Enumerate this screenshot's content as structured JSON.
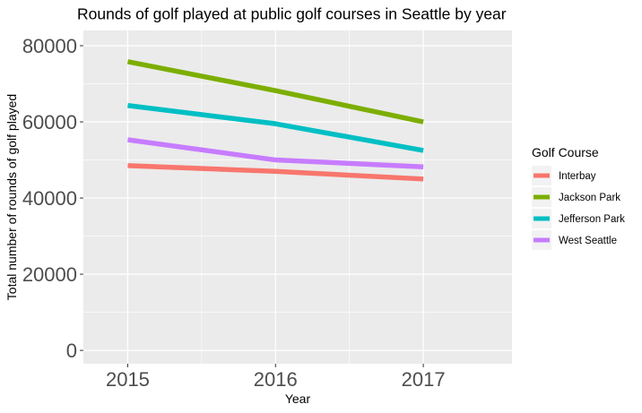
{
  "chart_data": {
    "type": "line",
    "title": "Rounds of golf played at public golf courses in Seattle by year",
    "xlabel": "Year",
    "ylabel": "Total number of rounds of golf played",
    "x": [
      2015,
      2016,
      2017
    ],
    "xlim": [
      2014.7,
      2017.6
    ],
    "ylim": [
      -3500,
      84000
    ],
    "yticks": [
      0,
      20000,
      40000,
      60000,
      80000
    ],
    "ytick_labels": [
      "0",
      "20000",
      "40000",
      "60000",
      "80000"
    ],
    "xtick_labels": [
      "2015",
      "2016",
      "2017"
    ],
    "grid": true,
    "background": "#ebebeb",
    "legend": {
      "title": "Golf Course",
      "position": "right"
    },
    "series": [
      {
        "name": "Interbay",
        "color": "#f8766d",
        "values": [
          48500,
          47000,
          45000
        ]
      },
      {
        "name": "Jackson Park",
        "color": "#7cae00",
        "values": [
          75800,
          68200,
          60000
        ]
      },
      {
        "name": "Jefferson Park",
        "color": "#00bfc4",
        "values": [
          64300,
          59500,
          52500
        ]
      },
      {
        "name": "West Seattle",
        "color": "#c77cff",
        "values": [
          55300,
          50000,
          48200
        ]
      }
    ]
  }
}
